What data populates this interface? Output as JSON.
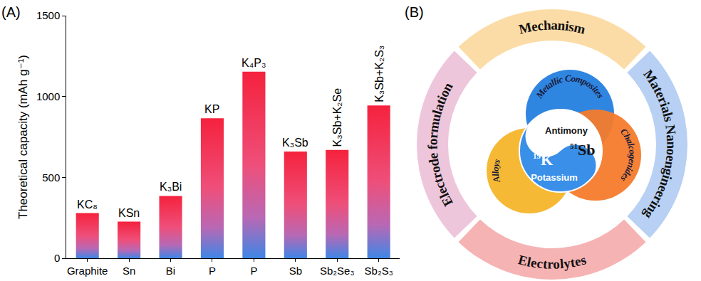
{
  "chart_data": {
    "type": "bar",
    "panel_label": "(A)",
    "y_label": "Theoretical capacity (mAh g⁻¹)",
    "categories": [
      "Graphite",
      "Sn",
      "Bi",
      "P",
      "P",
      "Sb",
      "Sb₂Se₃",
      "Sb₂S₃"
    ],
    "values": [
      279,
      226,
      385,
      865,
      1154,
      660,
      670,
      945
    ],
    "bar_labels": [
      "KC₈",
      "KSn",
      "K₃Bi",
      "KP",
      "K₄P₃",
      "K₃Sb",
      "K₃Sb+K₂Se",
      "K₃Sb+K₂S₃"
    ],
    "color": "#f5223d",
    "ylim": [
      0,
      1500
    ],
    "yticks": [
      0,
      500,
      1000,
      1500
    ],
    "grid": false
  },
  "diagram": {
    "panel_label": "(B)",
    "outer_ring": [
      "Mechanism",
      "Materials Nanoengineering",
      "Electrolytes",
      "Electrode formulation"
    ],
    "inner_circles": [
      "Metallic Composites",
      "Chalcogenides",
      "Alloys"
    ],
    "center": [
      {
        "number": "51",
        "symbol": "Sb",
        "name": "Antimony"
      },
      {
        "number": "19",
        "symbol": "K",
        "name": "Potassium"
      }
    ]
  }
}
